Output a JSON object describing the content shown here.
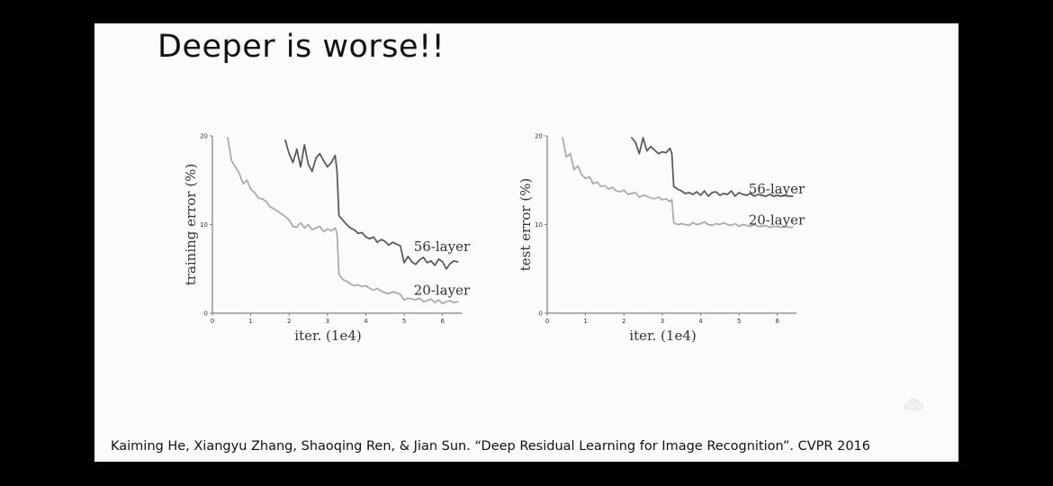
{
  "slide": {
    "title": "Deeper is worse!!",
    "citation": "Kaiming He, Xiangyu Zhang, Shaoqing Ren, & Jian Sun. “Deep Residual Learning for Image Recognition”. CVPR 2016",
    "corner_icon": "cloud-watermark-icon"
  },
  "chart_data": [
    {
      "type": "line",
      "xlabel": "iter. (1e4)",
      "ylabel": "training error (%)",
      "xlim": [
        0,
        6.5
      ],
      "ylim": [
        0,
        20
      ],
      "xticks": [
        "0",
        "1",
        "2",
        "3",
        "4",
        "5",
        "6"
      ],
      "yticks": [
        "0",
        "10",
        "20"
      ],
      "grid": false,
      "series": [
        {
          "name": "56-layer",
          "color": "#555555",
          "label_at": [
            5.25,
            7.5
          ],
          "x": [
            1.9,
            2.0,
            2.1,
            2.2,
            2.3,
            2.4,
            2.5,
            2.6,
            2.7,
            2.8,
            2.9,
            3.0,
            3.1,
            3.2,
            3.25,
            3.3,
            3.4,
            3.5,
            3.6,
            3.7,
            3.8,
            3.9,
            4.0,
            4.1,
            4.2,
            4.3,
            4.4,
            4.5,
            4.6,
            4.7,
            4.8,
            4.9,
            5.0,
            5.1,
            5.2,
            5.3,
            5.4,
            5.5,
            5.6,
            5.7,
            5.8,
            5.9,
            6.0,
            6.1,
            6.2,
            6.3,
            6.4
          ],
          "y": [
            19.5,
            18.0,
            17.0,
            18.5,
            16.5,
            19.0,
            16.8,
            16.0,
            17.5,
            18.0,
            17.2,
            16.5,
            17.0,
            17.8,
            16.0,
            11.0,
            10.5,
            10.0,
            9.6,
            9.4,
            9.0,
            9.1,
            8.6,
            8.4,
            8.6,
            8.0,
            8.3,
            8.1,
            7.7,
            8.0,
            7.8,
            7.6,
            5.7,
            6.4,
            5.8,
            5.5,
            6.0,
            6.3,
            5.7,
            5.9,
            5.4,
            6.1,
            5.8,
            5.0,
            5.6,
            5.9,
            5.8
          ]
        },
        {
          "name": "20-layer",
          "color": "#a8a8a8",
          "label_at": [
            5.25,
            2.6
          ],
          "x": [
            0.4,
            0.5,
            0.6,
            0.7,
            0.8,
            0.9,
            1.0,
            1.1,
            1.2,
            1.3,
            1.4,
            1.5,
            1.6,
            1.7,
            1.8,
            1.9,
            2.0,
            2.1,
            2.2,
            2.3,
            2.4,
            2.5,
            2.6,
            2.7,
            2.8,
            2.9,
            3.0,
            3.1,
            3.2,
            3.25,
            3.3,
            3.4,
            3.5,
            3.6,
            3.7,
            3.8,
            3.9,
            4.0,
            4.1,
            4.2,
            4.3,
            4.4,
            4.5,
            4.6,
            4.7,
            4.8,
            4.9,
            5.0,
            5.1,
            5.2,
            5.3,
            5.4,
            5.5,
            5.6,
            5.7,
            5.8,
            5.9,
            6.0,
            6.1,
            6.2,
            6.3,
            6.4
          ],
          "y": [
            19.8,
            17.2,
            16.5,
            15.8,
            14.6,
            15.0,
            14.0,
            13.6,
            13.0,
            12.9,
            12.6,
            12.0,
            11.8,
            11.5,
            11.2,
            10.9,
            10.5,
            9.8,
            9.7,
            10.2,
            9.6,
            10.0,
            9.4,
            9.6,
            9.8,
            9.2,
            9.5,
            9.3,
            9.6,
            9.0,
            4.4,
            3.8,
            3.6,
            3.3,
            3.1,
            3.2,
            3.0,
            3.1,
            2.8,
            2.6,
            2.8,
            2.5,
            2.3,
            2.2,
            2.4,
            2.3,
            2.1,
            1.5,
            1.7,
            1.6,
            1.5,
            1.7,
            1.3,
            1.4,
            1.6,
            1.2,
            1.5,
            1.1,
            1.3,
            1.4,
            1.2,
            1.3
          ]
        }
      ]
    },
    {
      "type": "line",
      "xlabel": "iter. (1e4)",
      "ylabel": "test error (%)",
      "xlim": [
        0,
        6.5
      ],
      "ylim": [
        0,
        20
      ],
      "xticks": [
        "0",
        "1",
        "2",
        "3",
        "4",
        "5",
        "6"
      ],
      "yticks": [
        "0",
        "10",
        "20"
      ],
      "grid": false,
      "series": [
        {
          "name": "56-layer",
          "color": "#555555",
          "label_at": [
            5.25,
            14.0
          ],
          "x": [
            2.2,
            2.3,
            2.4,
            2.5,
            2.6,
            2.7,
            2.8,
            2.9,
            3.0,
            3.1,
            3.2,
            3.25,
            3.3,
            3.4,
            3.5,
            3.6,
            3.7,
            3.8,
            3.9,
            4.0,
            4.1,
            4.2,
            4.3,
            4.4,
            4.5,
            4.6,
            4.7,
            4.8,
            4.9,
            5.0,
            5.1,
            5.2,
            5.3,
            5.4,
            5.5,
            5.6,
            5.7,
            5.8,
            5.9,
            6.0,
            6.1,
            6.2,
            6.3,
            6.4
          ],
          "y": [
            19.8,
            19.3,
            18.0,
            19.8,
            18.3,
            18.8,
            18.4,
            18.0,
            18.2,
            18.1,
            18.6,
            18.0,
            14.3,
            14.0,
            13.8,
            13.5,
            13.6,
            13.4,
            13.7,
            13.3,
            13.8,
            13.2,
            13.6,
            13.7,
            13.3,
            13.5,
            13.4,
            13.8,
            13.2,
            13.6,
            13.4,
            13.3,
            13.5,
            13.2,
            13.4,
            13.3,
            13.2,
            13.4,
            13.2,
            13.3,
            13.2,
            13.3,
            13.2,
            13.2
          ]
        },
        {
          "name": "20-layer",
          "color": "#a8a8a8",
          "label_at": [
            5.25,
            10.5
          ],
          "x": [
            0.4,
            0.5,
            0.6,
            0.7,
            0.8,
            0.9,
            1.0,
            1.1,
            1.2,
            1.3,
            1.4,
            1.5,
            1.6,
            1.7,
            1.8,
            1.9,
            2.0,
            2.1,
            2.2,
            2.3,
            2.4,
            2.5,
            2.6,
            2.7,
            2.8,
            2.9,
            3.0,
            3.1,
            3.2,
            3.25,
            3.3,
            3.4,
            3.5,
            3.6,
            3.7,
            3.8,
            3.9,
            4.0,
            4.1,
            4.2,
            4.3,
            4.4,
            4.5,
            4.6,
            4.7,
            4.8,
            4.9,
            5.0,
            5.1,
            5.2,
            5.3,
            5.4,
            5.5,
            5.6,
            5.7,
            5.8,
            5.9,
            6.0,
            6.1,
            6.2,
            6.3,
            6.4
          ],
          "y": [
            19.8,
            17.6,
            18.0,
            16.2,
            16.6,
            15.6,
            15.2,
            15.4,
            14.6,
            14.8,
            14.3,
            14.4,
            14.0,
            14.2,
            13.8,
            13.7,
            13.9,
            13.4,
            13.5,
            13.6,
            13.1,
            13.3,
            13.2,
            13.0,
            12.9,
            13.1,
            12.8,
            12.9,
            12.6,
            12.8,
            10.2,
            10.0,
            10.1,
            10.0,
            9.9,
            10.2,
            10.0,
            10.1,
            10.3,
            10.0,
            9.9,
            10.1,
            10.0,
            10.2,
            10.0,
            9.9,
            10.1,
            9.8,
            10.0,
            9.9,
            9.8,
            10.0,
            9.8,
            9.8,
            9.9,
            9.7,
            9.8,
            9.8,
            9.7,
            9.8,
            9.7,
            9.7
          ]
        }
      ]
    }
  ]
}
